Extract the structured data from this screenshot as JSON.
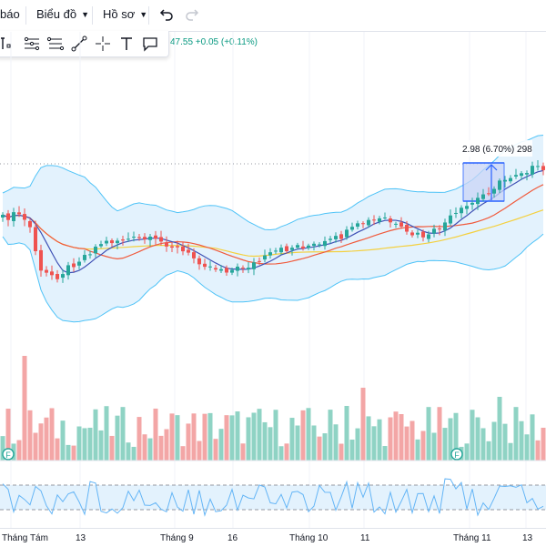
{
  "toolbar": {
    "alerts_label": "báo",
    "chart_label": "Biểu đồ",
    "profile_label": "Hồ sơ"
  },
  "legend": {
    "price_change": "47.55  +0.05 (+0.11%)"
  },
  "measure_label": "2.98 (6.70%) 298",
  "dividend_marker": "F",
  "x_axis": {
    "labels": [
      "Tháng Tám",
      "13",
      "Tháng 9",
      "16",
      "Tháng 10",
      "11",
      "Tháng 11",
      "13"
    ]
  },
  "icons": [
    "undo-icon",
    "redo-icon",
    "text-tool-icon",
    "fib-tool-icon",
    "pattern-tool-icon",
    "trend-line-icon",
    "crosshair-icon",
    "text-icon",
    "comment-icon"
  ],
  "colors": {
    "up": "#26a69a",
    "down": "#ef5350",
    "bb_band": "#4fc3f7",
    "ma_blue": "#3f51b5",
    "ma_red": "#f05a3c",
    "ma_yellow": "#f4d03f",
    "vol_up": "#8fd3c4",
    "vol_down": "#f3a6a6",
    "measure_fill": "#c9d4f5"
  },
  "chart_data": {
    "type": "candlestick",
    "series": [
      {
        "name": "price",
        "ohlc": []
      }
    ]
  }
}
